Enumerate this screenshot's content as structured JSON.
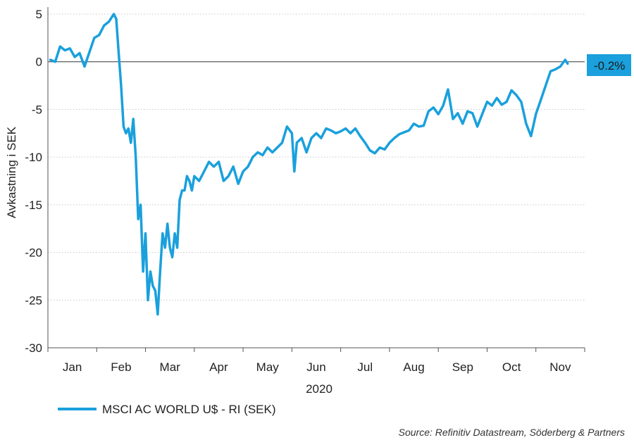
{
  "chart_data": {
    "type": "line",
    "title": "",
    "xlabel": "2020",
    "ylabel": "Avkastning i SEK",
    "ylim": [
      -30,
      5
    ],
    "yticks": [
      5,
      0,
      -5,
      -10,
      -15,
      -20,
      -25,
      -30
    ],
    "months": [
      "Jan",
      "Feb",
      "Mar",
      "Apr",
      "May",
      "Jun",
      "Jul",
      "Aug",
      "Sep",
      "Oct",
      "Nov"
    ],
    "x_unit": "months since 2020-01-01 (fractional)",
    "legend_position": "bottom-left",
    "grid": "horizontal dotted",
    "end_label": "-0.2%",
    "end_label_color": "#1aa0dc",
    "source": "Source: Refinitiv Datastream, Söderberg & Partners",
    "series": [
      {
        "name": "MSCI AC WORLD U$ - RI (SEK)",
        "color": "#1aa0dc",
        "x": [
          0.05,
          0.15,
          0.25,
          0.35,
          0.45,
          0.55,
          0.65,
          0.75,
          0.85,
          0.95,
          1.05,
          1.15,
          1.25,
          1.35,
          1.4,
          1.45,
          1.5,
          1.55,
          1.6,
          1.65,
          1.7,
          1.75,
          1.8,
          1.85,
          1.9,
          1.95,
          2.0,
          2.05,
          2.1,
          2.15,
          2.2,
          2.25,
          2.3,
          2.35,
          2.4,
          2.45,
          2.5,
          2.55,
          2.6,
          2.65,
          2.7,
          2.75,
          2.8,
          2.85,
          2.9,
          2.95,
          3.0,
          3.1,
          3.2,
          3.3,
          3.4,
          3.5,
          3.6,
          3.7,
          3.8,
          3.9,
          4.0,
          4.1,
          4.2,
          4.3,
          4.4,
          4.5,
          4.6,
          4.7,
          4.8,
          4.9,
          5.0,
          5.05,
          5.1,
          5.2,
          5.3,
          5.4,
          5.5,
          5.6,
          5.7,
          5.8,
          5.9,
          6.0,
          6.1,
          6.2,
          6.3,
          6.4,
          6.5,
          6.6,
          6.7,
          6.8,
          6.9,
          7.0,
          7.1,
          7.2,
          7.3,
          7.4,
          7.5,
          7.6,
          7.7,
          7.8,
          7.9,
          8.0,
          8.1,
          8.2,
          8.3,
          8.4,
          8.5,
          8.6,
          8.7,
          8.8,
          8.9,
          9.0,
          9.1,
          9.2,
          9.3,
          9.4,
          9.5,
          9.6,
          9.7,
          9.8,
          9.9,
          10.0,
          10.1,
          10.2,
          10.3,
          10.4,
          10.5,
          10.6,
          10.65
        ],
        "values": [
          0.2,
          0.0,
          1.6,
          1.2,
          1.4,
          0.5,
          0.9,
          -0.5,
          1.0,
          2.5,
          2.8,
          3.8,
          4.2,
          5.0,
          4.5,
          1.0,
          -2.5,
          -6.8,
          -7.5,
          -7.0,
          -8.5,
          -6.0,
          -10.0,
          -16.5,
          -15.0,
          -22.0,
          -18.0,
          -25.0,
          -22.0,
          -23.5,
          -24.0,
          -26.5,
          -22.0,
          -18.0,
          -19.5,
          -17.0,
          -19.5,
          -20.5,
          -18.0,
          -19.5,
          -14.5,
          -13.5,
          -13.5,
          -12.0,
          -12.5,
          -13.5,
          -12.0,
          -12.5,
          -11.5,
          -10.5,
          -11.0,
          -10.5,
          -12.5,
          -12.0,
          -11.0,
          -12.8,
          -11.5,
          -11.0,
          -10.0,
          -9.5,
          -9.8,
          -9.0,
          -9.5,
          -9.0,
          -8.5,
          -6.8,
          -7.5,
          -11.5,
          -8.5,
          -8.0,
          -9.5,
          -8.0,
          -7.5,
          -8.0,
          -7.0,
          -7.2,
          -7.5,
          -7.3,
          -7.0,
          -7.5,
          -7.0,
          -7.8,
          -8.5,
          -9.3,
          -9.6,
          -9.0,
          -9.2,
          -8.5,
          -8.0,
          -7.6,
          -7.4,
          -7.2,
          -6.5,
          -6.8,
          -6.7,
          -5.2,
          -4.8,
          -5.5,
          -4.6,
          -2.9,
          -6.0,
          -5.4,
          -6.5,
          -5.2,
          -5.4,
          -6.8,
          -5.5,
          -4.2,
          -4.6,
          -3.8,
          -4.5,
          -4.2,
          -3.0,
          -3.5,
          -4.2,
          -6.5,
          -7.8,
          -5.5,
          -4.0,
          -2.5,
          -1.0,
          -0.8,
          -0.5,
          0.2,
          -0.2
        ]
      }
    ]
  }
}
